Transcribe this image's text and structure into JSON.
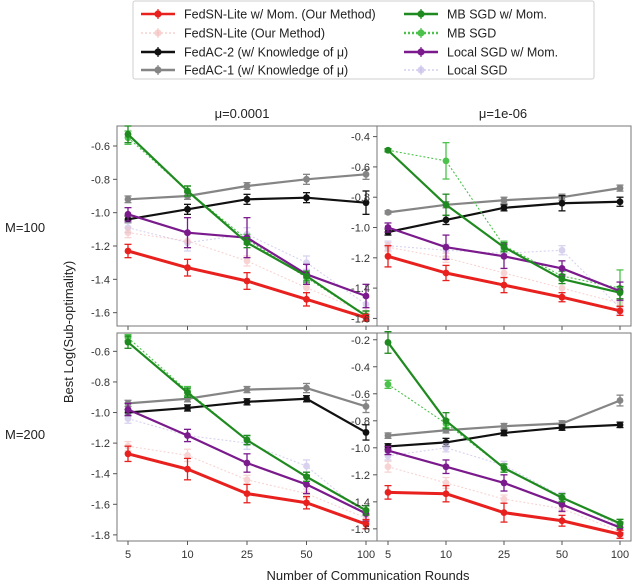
{
  "chart_data": {
    "type": "line",
    "legend": {
      "placement": "top-center",
      "columns": 2,
      "entries": [
        {
          "key": "fedsn_mom",
          "label": "FedSN-Lite w/ Mom. (Our Method)",
          "color": "#e8201e",
          "style": "solid",
          "faded": false
        },
        {
          "key": "fedsn",
          "label": "FedSN-Lite (Our Method)",
          "color": "#f4c3c1",
          "style": "dotted",
          "faded": true
        },
        {
          "key": "fedac2",
          "label": "FedAC-2 (w/ Knowledge of μ)",
          "color": "#111111",
          "style": "solid",
          "faded": false
        },
        {
          "key": "fedac1",
          "label": "FedAC-1 (w/ Knowledge of μ)",
          "color": "#858585",
          "style": "solid",
          "faded": false
        },
        {
          "key": "mbsgd_mom",
          "label": "MB SGD w/ Mom.",
          "color": "#1f8a1f",
          "style": "solid",
          "faded": false
        },
        {
          "key": "mbsgd",
          "label": "MB SGD",
          "color": "#4cc24c",
          "style": "dotted",
          "faded": false
        },
        {
          "key": "localsgd_mom",
          "label": "Local SGD w/ Mom.",
          "color": "#7a1a8c",
          "style": "solid",
          "faded": false
        },
        {
          "key": "localsgd",
          "label": "Local SGD",
          "color": "#c8c0e8",
          "style": "dotted",
          "faded": true
        }
      ]
    },
    "ylabel": "Best Log(Sub-optimality)",
    "xlabel": "Number of Communication Rounds",
    "categories": [
      "5",
      "10",
      "25",
      "50",
      "100"
    ],
    "col_titles": [
      "μ=0.0001",
      "μ=1e-06"
    ],
    "row_labels": [
      "M=100",
      "M=200"
    ],
    "panels": [
      {
        "title": "μ=0.0001",
        "row_label": "M=100",
        "ylim": [
          -1.68,
          -0.48
        ],
        "yticks": [
          "-0.6",
          "-0.8",
          "-1.0",
          "-1.2",
          "-1.4",
          "-1.6"
        ],
        "series": [
          {
            "key": "fedac1",
            "values": [
              -0.92,
              -0.9,
              -0.84,
              -0.8,
              -0.77
            ],
            "errors": [
              0.02,
              0.02,
              0.02,
              0.03,
              0.03
            ]
          },
          {
            "key": "fedac2",
            "values": [
              -1.04,
              -0.98,
              -0.92,
              -0.91,
              -0.94
            ],
            "errors": [
              0.02,
              0.03,
              0.03,
              0.03,
              0.07
            ]
          },
          {
            "key": "localsgd",
            "values": [
              -1.09,
              -1.18,
              -1.13,
              -1.3,
              -1.55
            ],
            "errors": [
              0.03,
              0.05,
              0.04,
              0.04,
              0.04
            ]
          },
          {
            "key": "localsgd_mom",
            "values": [
              -1.01,
              -1.12,
              -1.15,
              -1.37,
              -1.5
            ],
            "errors": [
              0.04,
              0.09,
              0.12,
              0.06,
              0.07
            ]
          },
          {
            "key": "mbsgd",
            "values": [
              -0.55,
              -0.87,
              -1.16,
              -1.39,
              -1.62
            ],
            "errors": [
              0.04,
              0.03,
              0.03,
              0.03,
              0.03
            ]
          },
          {
            "key": "mbsgd_mom",
            "values": [
              -0.53,
              -0.87,
              -1.18,
              -1.38,
              -1.62
            ],
            "errors": [
              0.05,
              0.03,
              0.03,
              0.03,
              0.03
            ]
          },
          {
            "key": "fedsn",
            "values": [
              -1.12,
              -1.17,
              -1.29,
              -1.45,
              -1.6
            ],
            "errors": [
              0.03,
              0.04,
              0.03,
              0.03,
              0.03
            ]
          },
          {
            "key": "fedsn_mom",
            "values": [
              -1.23,
              -1.33,
              -1.41,
              -1.52,
              -1.63
            ],
            "errors": [
              0.04,
              0.05,
              0.05,
              0.04,
              0.02
            ]
          }
        ]
      },
      {
        "title": "μ=1e-06",
        "row_label": "M=100",
        "ylim": [
          -1.65,
          -0.33
        ],
        "yticks": [
          "-0.4",
          "-0.6",
          "-0.8",
          "-1.0",
          "-1.2",
          "-1.4",
          "-1.6"
        ],
        "series": [
          {
            "key": "fedac1",
            "values": [
              -0.9,
              -0.85,
              -0.82,
              -0.8,
              -0.74
            ],
            "errors": [
              0.01,
              0.02,
              0.02,
              0.02,
              0.02
            ]
          },
          {
            "key": "fedac2",
            "values": [
              -1.03,
              -0.95,
              -0.87,
              -0.84,
              -0.83
            ],
            "errors": [
              0.02,
              0.03,
              0.02,
              0.05,
              0.03
            ]
          },
          {
            "key": "localsgd",
            "values": [
              -1.12,
              -1.15,
              -1.17,
              -1.15,
              -1.53
            ],
            "errors": [
              0.03,
              0.04,
              0.03,
              0.03,
              0.04
            ]
          },
          {
            "key": "localsgd_mom",
            "values": [
              -1.0,
              -1.13,
              -1.19,
              -1.27,
              -1.42
            ],
            "errors": [
              0.03,
              0.08,
              0.08,
              0.05,
              0.06
            ]
          },
          {
            "key": "mbsgd",
            "values": [
              -0.49,
              -0.56,
              -1.12,
              -1.32,
              -1.4
            ],
            "errors": [
              0.01,
              0.12,
              0.03,
              0.03,
              0.12
            ]
          },
          {
            "key": "mbsgd_mom",
            "values": [
              -0.49,
              -0.85,
              -1.13,
              -1.34,
              -1.43
            ],
            "errors": [
              0.01,
              0.07,
              0.03,
              0.03,
              0.04
            ]
          },
          {
            "key": "fedsn",
            "values": [
              -1.13,
              -1.2,
              -1.3,
              -1.4,
              -1.5
            ],
            "errors": [
              0.03,
              0.03,
              0.03,
              0.03,
              0.03
            ]
          },
          {
            "key": "fedsn_mom",
            "values": [
              -1.19,
              -1.3,
              -1.38,
              -1.46,
              -1.55
            ],
            "errors": [
              0.07,
              0.05,
              0.05,
              0.03,
              0.03
            ]
          }
        ]
      },
      {
        "title": "μ=0.0001",
        "row_label": "M=200",
        "ylim": [
          -1.84,
          -0.48
        ],
        "yticks": [
          "-0.6",
          "-0.8",
          "-1.0",
          "-1.2",
          "-1.4",
          "-1.6",
          "-1.8"
        ],
        "series": [
          {
            "key": "fedac1",
            "values": [
              -0.94,
              -0.91,
              -0.85,
              -0.84,
              -0.96
            ],
            "errors": [
              0.02,
              0.02,
              0.02,
              0.03,
              0.04
            ]
          },
          {
            "key": "fedac2",
            "values": [
              -1.0,
              -0.97,
              -0.93,
              -0.91,
              -1.13
            ],
            "errors": [
              0.02,
              0.02,
              0.02,
              0.02,
              0.05
            ]
          },
          {
            "key": "localsgd",
            "values": [
              -1.04,
              -1.15,
              -1.2,
              -1.35,
              -1.67
            ],
            "errors": [
              0.03,
              0.04,
              0.04,
              0.04,
              0.04
            ]
          },
          {
            "key": "localsgd_mom",
            "values": [
              -0.98,
              -1.15,
              -1.33,
              -1.47,
              -1.66
            ],
            "errors": [
              0.04,
              0.04,
              0.06,
              0.06,
              0.05
            ]
          },
          {
            "key": "mbsgd",
            "values": [
              -0.51,
              -0.86,
              -1.18,
              -1.42,
              -1.64
            ],
            "errors": [
              0.02,
              0.03,
              0.03,
              0.03,
              0.03
            ]
          },
          {
            "key": "mbsgd_mom",
            "values": [
              -0.54,
              -0.87,
              -1.18,
              -1.42,
              -1.64
            ],
            "errors": [
              0.04,
              0.03,
              0.03,
              0.03,
              0.03
            ]
          },
          {
            "key": "fedsn",
            "values": [
              -1.22,
              -1.28,
              -1.44,
              -1.53,
              -1.69
            ],
            "errors": [
              0.03,
              0.04,
              0.03,
              0.03,
              0.03
            ]
          },
          {
            "key": "fedsn_mom",
            "values": [
              -1.27,
              -1.37,
              -1.53,
              -1.59,
              -1.73
            ],
            "errors": [
              0.05,
              0.07,
              0.06,
              0.04,
              0.03
            ]
          }
        ]
      },
      {
        "title": "μ=1e-06",
        "row_label": "M=200",
        "ylim": [
          -1.69,
          -0.15
        ],
        "yticks": [
          "-0.2",
          "-0.4",
          "-0.6",
          "-0.8",
          "-1.0",
          "-1.2",
          "-1.4",
          "-1.6"
        ],
        "series": [
          {
            "key": "fedac1",
            "values": [
              -0.91,
              -0.87,
              -0.84,
              -0.82,
              -0.65
            ],
            "errors": [
              0.02,
              0.02,
              0.02,
              0.02,
              0.04
            ]
          },
          {
            "key": "fedac2",
            "values": [
              -0.99,
              -0.96,
              -0.89,
              -0.85,
              -0.83
            ],
            "errors": [
              0.02,
              0.03,
              0.02,
              0.02,
              0.02
            ]
          },
          {
            "key": "localsgd",
            "values": [
              -1.06,
              -1.0,
              -1.13,
              -1.36,
              -1.58
            ],
            "errors": [
              0.03,
              0.03,
              0.03,
              0.03,
              0.03
            ]
          },
          {
            "key": "localsgd_mom",
            "values": [
              -1.02,
              -1.14,
              -1.26,
              -1.42,
              -1.59
            ],
            "errors": [
              0.03,
              0.05,
              0.06,
              0.05,
              0.04
            ]
          },
          {
            "key": "mbsgd",
            "values": [
              -0.53,
              -0.82,
              -1.15,
              -1.37,
              -1.56
            ],
            "errors": [
              0.03,
              0.03,
              0.03,
              0.03,
              0.03
            ]
          },
          {
            "key": "mbsgd_mom",
            "values": [
              -0.22,
              -0.8,
              -1.15,
              -1.37,
              -1.56
            ],
            "errors": [
              0.08,
              0.06,
              0.03,
              0.03,
              0.03
            ]
          },
          {
            "key": "fedsn",
            "values": [
              -1.14,
              -1.26,
              -1.38,
              -1.45,
              -1.62
            ],
            "errors": [
              0.04,
              0.04,
              0.03,
              0.03,
              0.03
            ]
          },
          {
            "key": "fedsn_mom",
            "values": [
              -1.33,
              -1.34,
              -1.48,
              -1.54,
              -1.64
            ],
            "errors": [
              0.05,
              0.06,
              0.07,
              0.04,
              0.03
            ]
          }
        ]
      }
    ]
  }
}
